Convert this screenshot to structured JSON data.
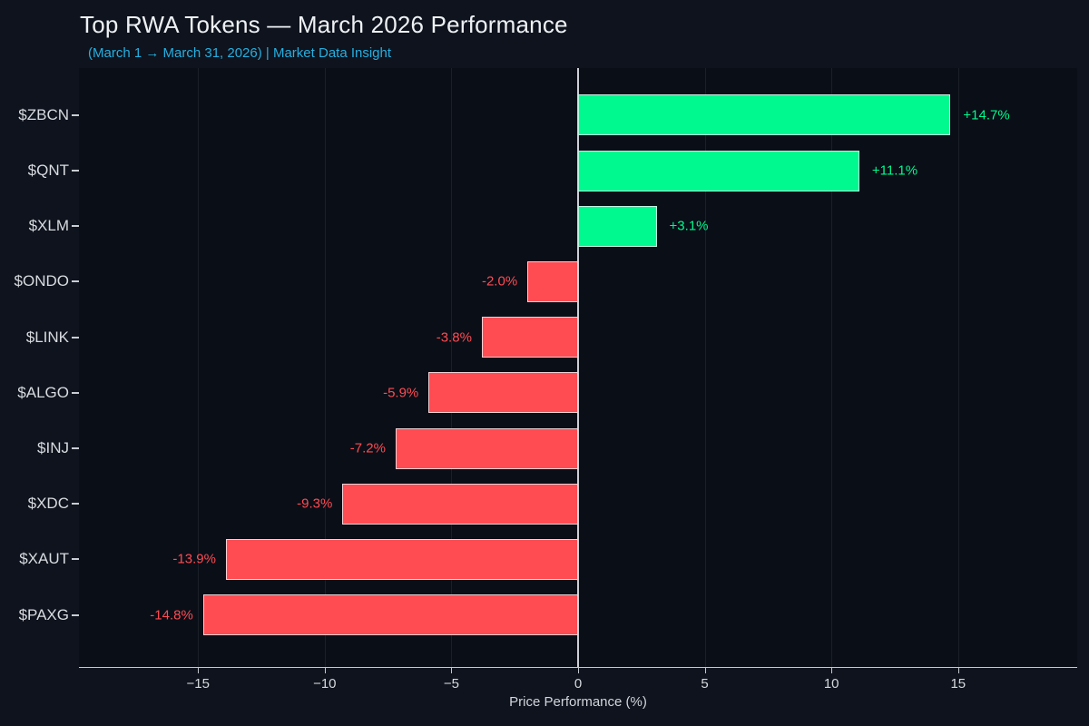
{
  "header": {
    "title": "Top RWA Tokens — March 2026 Performance",
    "subtitle": "(March 1 → March 31, 2026) | Market Data Insight"
  },
  "chart_data": {
    "type": "bar",
    "orientation": "horizontal",
    "title": "Top RWA Tokens — March 2026 Performance",
    "subtitle": "(March 1 → March 31, 2026) | Market Data Insight",
    "categories": [
      "$ZBCN",
      "$QNT",
      "$XLM",
      "$ONDO",
      "$LINK",
      "$ALGO",
      "$INJ",
      "$XDC",
      "$XAUT",
      "$PAXG"
    ],
    "values": [
      14.7,
      11.1,
      3.1,
      -2.0,
      -3.8,
      -5.9,
      -7.2,
      -9.3,
      -13.9,
      -14.8
    ],
    "value_labels": [
      "+14.7%",
      "+11.1%",
      "+3.1%",
      "-2.0%",
      "-3.8%",
      "-5.9%",
      "-7.2%",
      "-9.3%",
      "-13.9%",
      "-14.8%"
    ],
    "xlabel": "Price Performance (%)",
    "ylabel": "",
    "xticks": [
      -15,
      -10,
      -5,
      0,
      5,
      10,
      15
    ],
    "xtick_labels": [
      "−15",
      "−10",
      "−5",
      "0",
      "5",
      "10",
      "15"
    ],
    "xlim": [
      -19.7,
      19.7
    ],
    "grid": "vertical-faint",
    "legend": "none",
    "colors": {
      "positive": "#00f98e",
      "negative": "#ff4b52",
      "figure_background": "#0e131d",
      "plot_background": "#0a0e17",
      "zero_line": "#ccd0d6",
      "axis": "#c4c8ce",
      "title": "#eef1f4",
      "subtitle": "#25afe0",
      "tick_label": "#d5d8dc"
    }
  }
}
